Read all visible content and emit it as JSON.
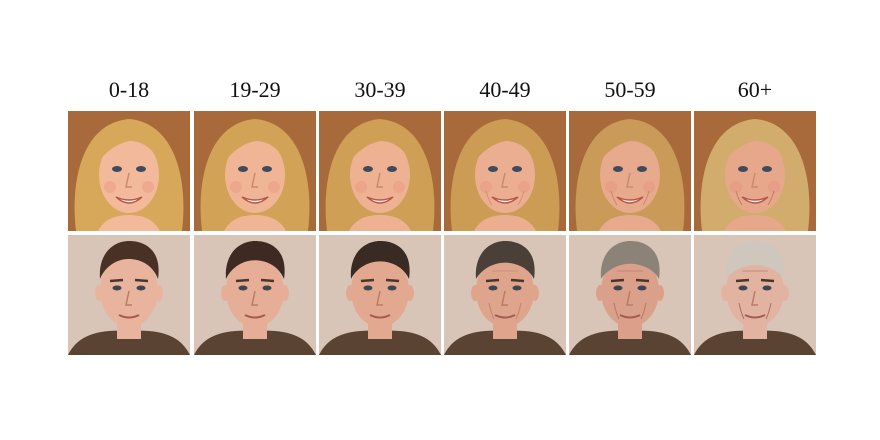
{
  "age_groups": [
    "0-18",
    "19-29",
    "30-39",
    "40-49",
    "50-59",
    "60+"
  ],
  "rows": [
    {
      "subject": "female",
      "faces": [
        {
          "age_group": "0-18",
          "skin": "#f2b99a",
          "hair": "#d7a85a",
          "age_level": 0.0
        },
        {
          "age_group": "19-29",
          "skin": "#f0b595",
          "hair": "#d2a257",
          "age_level": 0.2
        },
        {
          "age_group": "30-39",
          "skin": "#eeb293",
          "hair": "#cf9f55",
          "age_level": 0.35
        },
        {
          "age_group": "40-49",
          "skin": "#ecae90",
          "hair": "#cc9c55",
          "age_level": 0.55
        },
        {
          "age_group": "50-59",
          "skin": "#e8aa8c",
          "hair": "#c99a58",
          "age_level": 0.75
        },
        {
          "age_group": "60+",
          "skin": "#e6a78b",
          "hair": "#d2ac6c",
          "age_level": 0.95
        }
      ]
    },
    {
      "subject": "male",
      "faces": [
        {
          "age_group": "0-18",
          "skin": "#e9b49d",
          "hair": "#4a3126",
          "age_level": 0.0
        },
        {
          "age_group": "19-29",
          "skin": "#e6ae96",
          "hair": "#3e2a22",
          "age_level": 0.2
        },
        {
          "age_group": "30-39",
          "skin": "#e2a990",
          "hair": "#3a2a24",
          "age_level": 0.4
        },
        {
          "age_group": "40-49",
          "skin": "#dea48c",
          "hair": "#4a4038",
          "age_level": 0.6
        },
        {
          "age_group": "50-59",
          "skin": "#dba08a",
          "hair": "#8c8378",
          "age_level": 0.8
        },
        {
          "age_group": "60+",
          "skin": "#e3b3a2",
          "hair": "#cfc6bd",
          "age_level": 1.0
        }
      ]
    }
  ],
  "colors": {
    "female_background": "#a86a3a",
    "male_background": "#d9c4b8",
    "label_text": "#111111"
  }
}
